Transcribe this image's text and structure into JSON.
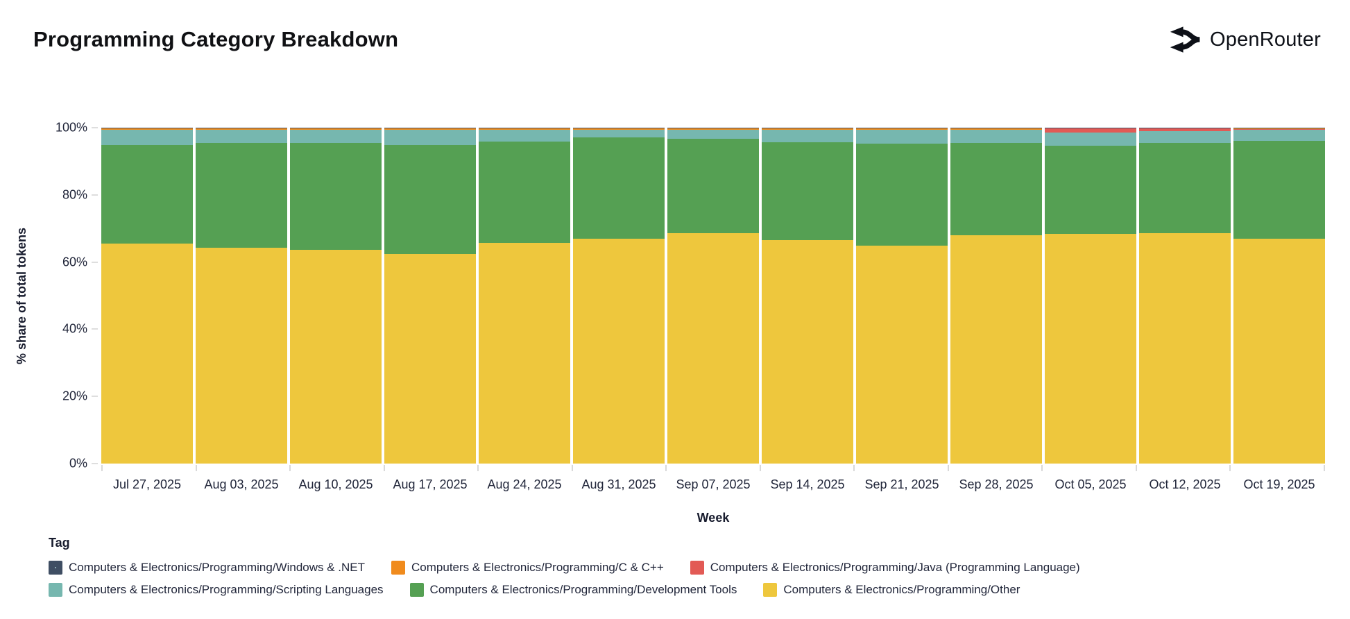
{
  "header": {
    "title": "Programming Category Breakdown",
    "brand": "OpenRouter"
  },
  "colors": {
    "windows_net": "#3f4e63",
    "c_cpp": "#f08b1d",
    "java": "#e25a55",
    "scripting": "#76b7af",
    "dev_tools": "#55a053",
    "other": "#eec73d",
    "axis_text": "#21263a",
    "tick": "#dedede"
  },
  "chart_data": {
    "type": "bar",
    "stacked": true,
    "normalized": "percent",
    "title": "Programming Category Breakdown",
    "xlabel": "Week",
    "ylabel": "% share of total tokens",
    "ylim": [
      0,
      100
    ],
    "yticks": [
      "0%",
      "20%",
      "40%",
      "60%",
      "80%",
      "100%"
    ],
    "grid": false,
    "legend_position": "bottom",
    "categories": [
      "Jul 27, 2025",
      "Aug 03, 2025",
      "Aug 10, 2025",
      "Aug 17, 2025",
      "Aug 24, 2025",
      "Aug 31, 2025",
      "Sep 07, 2025",
      "Sep 14, 2025",
      "Sep 21, 2025",
      "Sep 28, 2025",
      "Oct 05, 2025",
      "Oct 12, 2025",
      "Oct 19, 2025"
    ],
    "series": [
      {
        "name": "Computers & Electronics/Programming/Other",
        "color": "#eec73d",
        "values": [
          65.5,
          64.3,
          63.7,
          62.5,
          65.7,
          66.9,
          68.6,
          66.6,
          64.9,
          67.9,
          68.4,
          68.6,
          67.0
        ]
      },
      {
        "name": "Computers & Electronics/Programming/Development Tools",
        "color": "#55a053",
        "values": [
          29.4,
          31.2,
          31.7,
          32.4,
          30.2,
          30.3,
          28.1,
          29.1,
          30.3,
          27.6,
          26.2,
          26.9,
          29.1
        ]
      },
      {
        "name": "Computers & Electronics/Programming/Scripting Languages",
        "color": "#76b7af",
        "values": [
          4.4,
          3.8,
          3.9,
          4.4,
          3.4,
          2.1,
          2.6,
          3.6,
          4.1,
          3.8,
          4.0,
          3.4,
          3.3
        ]
      },
      {
        "name": "Computers & Electronics/Programming/Java (Programming Language)",
        "color": "#e25a55",
        "values": [
          0.1,
          0.1,
          0.1,
          0.1,
          0.1,
          0.1,
          0.1,
          0.1,
          0.1,
          0.1,
          1.2,
          0.9,
          0.1
        ]
      },
      {
        "name": "Computers & Electronics/Programming/C & C++",
        "color": "#f08b1d",
        "values": [
          0.5,
          0.5,
          0.5,
          0.5,
          0.5,
          0.5,
          0.5,
          0.5,
          0.5,
          0.5,
          0.1,
          0.1,
          0.4
        ]
      },
      {
        "name": "Computers & Electronics/Programming/Windows & .NET",
        "color": "#3f4e63",
        "values": [
          0.1,
          0.1,
          0.1,
          0.1,
          0.1,
          0.1,
          0.1,
          0.1,
          0.1,
          0.1,
          0.1,
          0.1,
          0.1
        ]
      }
    ]
  },
  "legend": {
    "title": "Tag",
    "items": [
      {
        "label": "Computers & Electronics/Programming/Windows & .NET",
        "color": "#3f4e63",
        "patterned": true
      },
      {
        "label": "Computers & Electronics/Programming/C & C++",
        "color": "#f08b1d",
        "patterned": false
      },
      {
        "label": "Computers & Electronics/Programming/Java (Programming Language)",
        "color": "#e25a55",
        "patterned": false
      },
      {
        "label": "Computers & Electronics/Programming/Scripting Languages",
        "color": "#76b7af",
        "patterned": false
      },
      {
        "label": "Computers & Electronics/Programming/Development Tools",
        "color": "#55a053",
        "patterned": false
      },
      {
        "label": "Computers & Electronics/Programming/Other",
        "color": "#eec73d",
        "patterned": false
      }
    ]
  }
}
